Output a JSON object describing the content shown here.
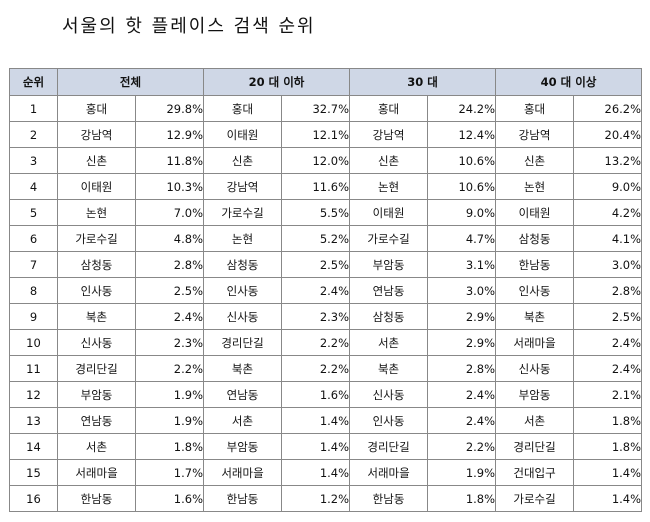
{
  "title": "서울의 핫 플레이스 검색 순위",
  "headers": {
    "rank": "순위",
    "groups": [
      "전체",
      "20 대 이하",
      "30 대",
      "40 대 이상"
    ]
  },
  "rows": [
    {
      "rank": "1",
      "cells": [
        {
          "place": "홍대",
          "pct": "29.8%"
        },
        {
          "place": "홍대",
          "pct": "32.7%"
        },
        {
          "place": "홍대",
          "pct": "24.2%"
        },
        {
          "place": "홍대",
          "pct": "26.2%"
        }
      ]
    },
    {
      "rank": "2",
      "cells": [
        {
          "place": "강남역",
          "pct": "12.9%"
        },
        {
          "place": "이태원",
          "pct": "12.1%"
        },
        {
          "place": "강남역",
          "pct": "12.4%"
        },
        {
          "place": "강남역",
          "pct": "20.4%"
        }
      ]
    },
    {
      "rank": "3",
      "cells": [
        {
          "place": "신촌",
          "pct": "11.8%"
        },
        {
          "place": "신촌",
          "pct": "12.0%"
        },
        {
          "place": "신촌",
          "pct": "10.6%"
        },
        {
          "place": "신촌",
          "pct": "13.2%"
        }
      ]
    },
    {
      "rank": "4",
      "cells": [
        {
          "place": "이태원",
          "pct": "10.3%"
        },
        {
          "place": "강남역",
          "pct": "11.6%"
        },
        {
          "place": "논현",
          "pct": "10.6%"
        },
        {
          "place": "논현",
          "pct": "9.0%"
        }
      ]
    },
    {
      "rank": "5",
      "cells": [
        {
          "place": "논현",
          "pct": "7.0%"
        },
        {
          "place": "가로수길",
          "pct": "5.5%"
        },
        {
          "place": "이태원",
          "pct": "9.0%"
        },
        {
          "place": "이태원",
          "pct": "4.2%"
        }
      ]
    },
    {
      "rank": "6",
      "cells": [
        {
          "place": "가로수길",
          "pct": "4.8%"
        },
        {
          "place": "논현",
          "pct": "5.2%"
        },
        {
          "place": "가로수길",
          "pct": "4.7%"
        },
        {
          "place": "삼청동",
          "pct": "4.1%"
        }
      ]
    },
    {
      "rank": "7",
      "cells": [
        {
          "place": "삼청동",
          "pct": "2.8%"
        },
        {
          "place": "삼청동",
          "pct": "2.5%"
        },
        {
          "place": "부암동",
          "pct": "3.1%"
        },
        {
          "place": "한남동",
          "pct": "3.0%"
        }
      ]
    },
    {
      "rank": "8",
      "cells": [
        {
          "place": "인사동",
          "pct": "2.5%"
        },
        {
          "place": "인사동",
          "pct": "2.4%"
        },
        {
          "place": "연남동",
          "pct": "3.0%"
        },
        {
          "place": "인사동",
          "pct": "2.8%"
        }
      ]
    },
    {
      "rank": "9",
      "cells": [
        {
          "place": "북촌",
          "pct": "2.4%"
        },
        {
          "place": "신사동",
          "pct": "2.3%"
        },
        {
          "place": "삼청동",
          "pct": "2.9%"
        },
        {
          "place": "북촌",
          "pct": "2.5%"
        }
      ]
    },
    {
      "rank": "10",
      "cells": [
        {
          "place": "신사동",
          "pct": "2.3%"
        },
        {
          "place": "경리단길",
          "pct": "2.2%"
        },
        {
          "place": "서촌",
          "pct": "2.9%"
        },
        {
          "place": "서래마을",
          "pct": "2.4%"
        }
      ]
    },
    {
      "rank": "11",
      "cells": [
        {
          "place": "경리단길",
          "pct": "2.2%"
        },
        {
          "place": "북촌",
          "pct": "2.2%"
        },
        {
          "place": "북촌",
          "pct": "2.8%"
        },
        {
          "place": "신사동",
          "pct": "2.4%"
        }
      ]
    },
    {
      "rank": "12",
      "cells": [
        {
          "place": "부암동",
          "pct": "1.9%"
        },
        {
          "place": "연남동",
          "pct": "1.6%"
        },
        {
          "place": "신사동",
          "pct": "2.4%"
        },
        {
          "place": "부암동",
          "pct": "2.1%"
        }
      ]
    },
    {
      "rank": "13",
      "cells": [
        {
          "place": "연남동",
          "pct": "1.9%"
        },
        {
          "place": "서촌",
          "pct": "1.4%"
        },
        {
          "place": "인사동",
          "pct": "2.4%"
        },
        {
          "place": "서촌",
          "pct": "1.8%"
        }
      ]
    },
    {
      "rank": "14",
      "cells": [
        {
          "place": "서촌",
          "pct": "1.8%"
        },
        {
          "place": "부암동",
          "pct": "1.4%"
        },
        {
          "place": "경리단길",
          "pct": "2.2%"
        },
        {
          "place": "경리단길",
          "pct": "1.8%"
        }
      ]
    },
    {
      "rank": "15",
      "cells": [
        {
          "place": "서래마을",
          "pct": "1.7%"
        },
        {
          "place": "서래마을",
          "pct": "1.4%"
        },
        {
          "place": "서래마을",
          "pct": "1.9%"
        },
        {
          "place": "건대입구",
          "pct": "1.4%"
        }
      ]
    },
    {
      "rank": "16",
      "cells": [
        {
          "place": "한남동",
          "pct": "1.6%"
        },
        {
          "place": "한남동",
          "pct": "1.2%"
        },
        {
          "place": "한남동",
          "pct": "1.8%"
        },
        {
          "place": "가로수길",
          "pct": "1.4%"
        }
      ]
    }
  ],
  "colors": {
    "header_bg": "#cfd7e6",
    "border": "#888888"
  }
}
